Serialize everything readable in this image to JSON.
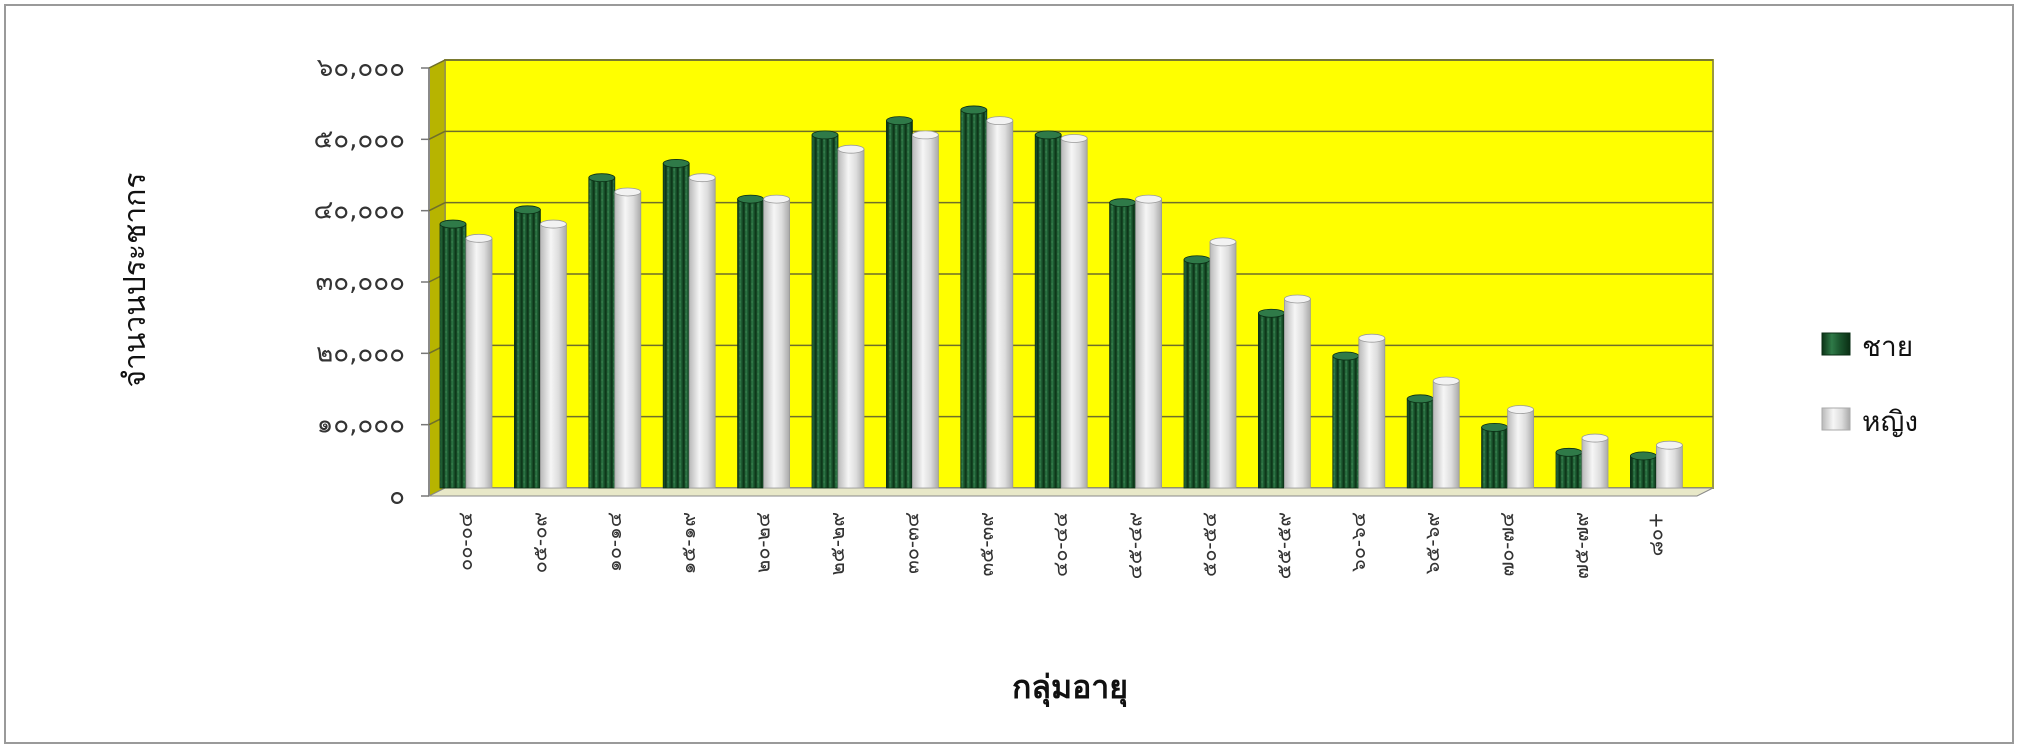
{
  "chart_data": {
    "type": "bar",
    "title": "",
    "xlabel": "กลุ่มอายุ",
    "ylabel": "จำนวนประชากร",
    "ylim": [
      0,
      60000
    ],
    "yticks": [
      "๐",
      "๑๐,๐๐๐",
      "๒๐,๐๐๐",
      "๓๐,๐๐๐",
      "๔๐,๐๐๐",
      "๕๐,๐๐๐",
      "๖๐,๐๐๐"
    ],
    "categories": [
      "๐๐-๐๔",
      "๐๕-๐๙",
      "๑๐-๑๔",
      "๑๕-๑๙",
      "๒๐-๒๔",
      "๒๕-๒๙",
      "๓๐-๓๔",
      "๓๕-๓๙",
      "๔๐-๔๔",
      "๔๕-๔๙",
      "๕๐-๕๔",
      "๕๕-๕๙",
      "๖๐-๖๔",
      "๖๕-๖๙",
      "๗๐-๗๔",
      "๗๕-๗๙",
      "๘๐+"
    ],
    "series": [
      {
        "name": "ชาย",
        "color": "#1e5e34",
        "values": [
          37000,
          39000,
          43500,
          45500,
          40500,
          49500,
          51500,
          53000,
          49500,
          40000,
          32000,
          24500,
          18500,
          12500,
          8500,
          5000,
          4500
        ]
      },
      {
        "name": "หญิง",
        "color": "#e2e2e2",
        "values": [
          35000,
          37000,
          41500,
          43500,
          40500,
          47500,
          49500,
          51500,
          49000,
          40500,
          34500,
          26500,
          21000,
          15000,
          11000,
          7000,
          6000
        ]
      }
    ],
    "plot_background": "#ffff00",
    "wall_side_color": "#b7b400",
    "grid": true,
    "legend_position": "right"
  }
}
